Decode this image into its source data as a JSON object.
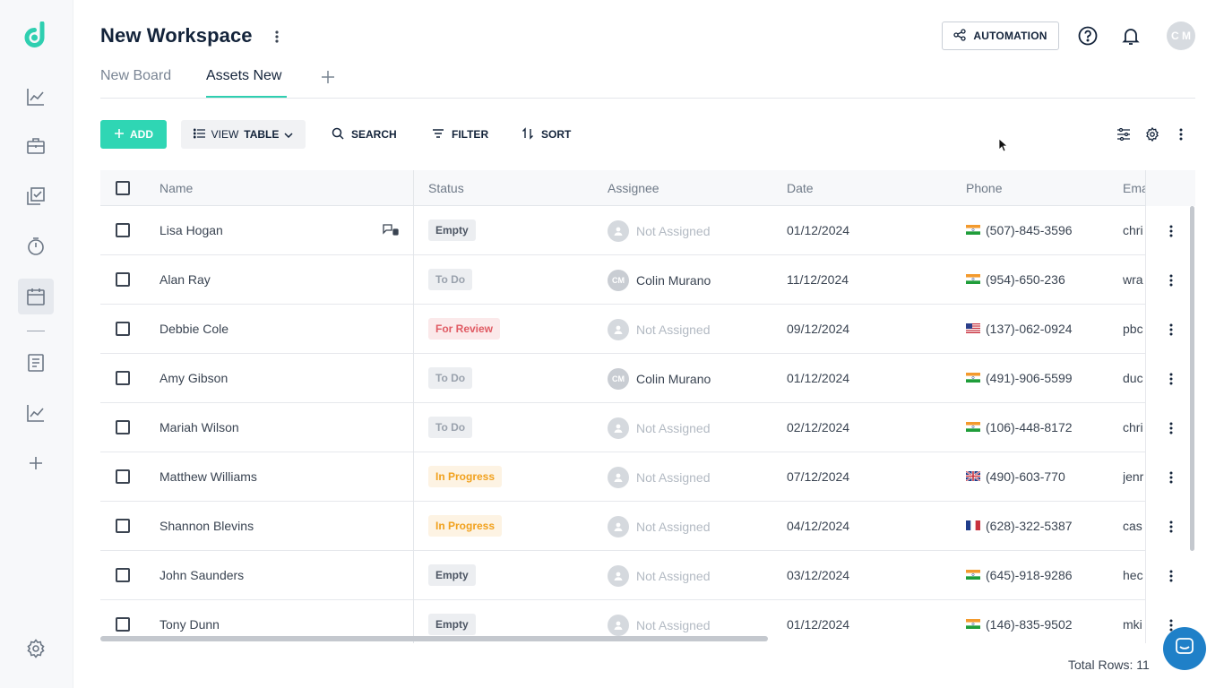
{
  "workspace": {
    "title": "New Workspace"
  },
  "tabs": [
    {
      "label": "New Board",
      "active": false
    },
    {
      "label": "Assets New",
      "active": true
    }
  ],
  "header": {
    "automation_label": "AUTOMATION",
    "avatar_initials": "C M"
  },
  "toolbar": {
    "add_label": "ADD",
    "view_prefix": "VIEW",
    "view_value": "TABLE",
    "search_label": "SEARCH",
    "filter_label": "FILTER",
    "sort_label": "SORT"
  },
  "table": {
    "columns": [
      "Name",
      "Status",
      "Assignee",
      "Date",
      "Phone",
      "Ema"
    ],
    "rows": [
      {
        "name": "Lisa Hogan",
        "status": "Empty",
        "assignee": "Not Assigned",
        "assignee_initials": "",
        "date": "01/12/2024",
        "flag": "india",
        "phone": "(507)-845-3596",
        "email": "chri"
      },
      {
        "name": "Alan Ray",
        "status": "To Do",
        "assignee": "Colin Murano",
        "assignee_initials": "CM",
        "date": "11/12/2024",
        "flag": "india",
        "phone": "(954)-650-236",
        "email": "wra"
      },
      {
        "name": "Debbie Cole",
        "status": "For Review",
        "assignee": "Not Assigned",
        "assignee_initials": "",
        "date": "09/12/2024",
        "flag": "usa",
        "phone": "(137)-062-0924",
        "email": "pbc"
      },
      {
        "name": "Amy Gibson",
        "status": "To Do",
        "assignee": "Colin Murano",
        "assignee_initials": "CM",
        "date": "01/12/2024",
        "flag": "india",
        "phone": "(491)-906-5599",
        "email": "duc"
      },
      {
        "name": "Mariah Wilson",
        "status": "To Do",
        "assignee": "Not Assigned",
        "assignee_initials": "",
        "date": "02/12/2024",
        "flag": "india",
        "phone": "(106)-448-8172",
        "email": "chri"
      },
      {
        "name": "Matthew Williams",
        "status": "In Progress",
        "assignee": "Not Assigned",
        "assignee_initials": "",
        "date": "07/12/2024",
        "flag": "uk",
        "phone": "(490)-603-770",
        "email": "jenr"
      },
      {
        "name": "Shannon Blevins",
        "status": "In Progress",
        "assignee": "Not Assigned",
        "assignee_initials": "",
        "date": "04/12/2024",
        "flag": "france",
        "phone": "(628)-322-5387",
        "email": "cas"
      },
      {
        "name": "John Saunders",
        "status": "Empty",
        "assignee": "Not Assigned",
        "assignee_initials": "",
        "date": "03/12/2024",
        "flag": "india",
        "phone": "(645)-918-9286",
        "email": "hec"
      },
      {
        "name": "Tony Dunn",
        "status": "Empty",
        "assignee": "Not Assigned",
        "assignee_initials": "",
        "date": "01/12/2024",
        "flag": "india",
        "phone": "(146)-835-9502",
        "email": "mki"
      }
    ]
  },
  "status_styles": {
    "Empty": {
      "bg": "#eceef1",
      "fg": "#4d5664"
    },
    "To Do": {
      "bg": "#eceef1",
      "fg": "#9aa2ad"
    },
    "For Review": {
      "bg": "#fbe9ea",
      "fg": "#e05a63"
    },
    "In Progress": {
      "bg": "#fdf3e3",
      "fg": "#f1a11d"
    }
  },
  "footer": {
    "total_rows": "Total Rows: 11"
  },
  "colors": {
    "accent": "#2fd6b4",
    "brand": "#2fcfb0",
    "chat": "#1f80c8"
  }
}
